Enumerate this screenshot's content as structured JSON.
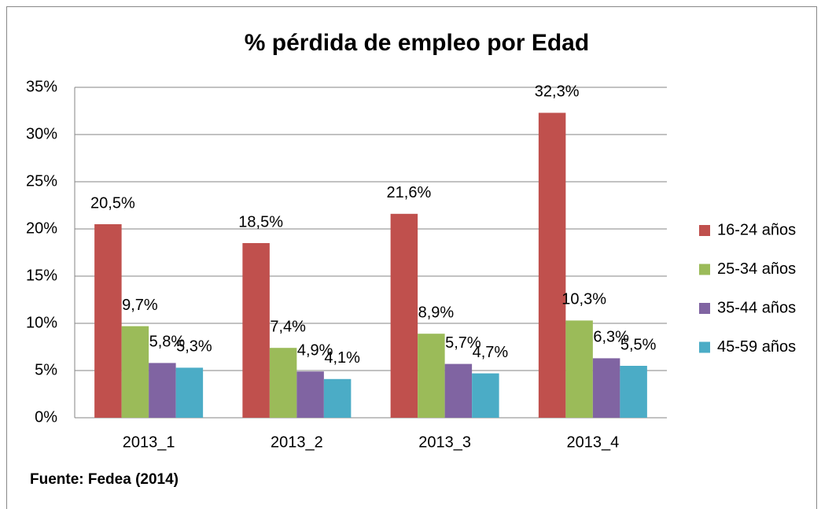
{
  "chart_data": {
    "type": "bar",
    "title": "% pérdida de empleo por Edad",
    "categories": [
      "2013_1",
      "2013_2",
      "2013_3",
      "2013_4"
    ],
    "series": [
      {
        "name": "16-24 años",
        "color": "#c0504d",
        "values": [
          20.5,
          18.5,
          21.6,
          32.3
        ],
        "value_labels": [
          "20,5%",
          "18,5%",
          "21,6%",
          "32,3%"
        ]
      },
      {
        "name": "25-34 años",
        "color": "#9bbb59",
        "values": [
          9.7,
          7.4,
          8.9,
          10.3
        ],
        "value_labels": [
          "9,7%",
          "7,4%",
          "8,9%",
          "10,3%"
        ]
      },
      {
        "name": "35-44 años",
        "color": "#8064a2",
        "values": [
          5.8,
          4.9,
          5.7,
          6.3
        ],
        "value_labels": [
          "5,8%",
          "4,9%",
          "5,7%",
          "6,3%"
        ]
      },
      {
        "name": "45-59 años",
        "color": "#4bacc6",
        "values": [
          5.3,
          4.1,
          4.7,
          5.5
        ],
        "value_labels": [
          "5,3%",
          "4,1%",
          "4,7%",
          "5,5%"
        ]
      }
    ],
    "ylim": [
      0,
      35
    ],
    "yticks": [
      {
        "value": 0,
        "label": "0%"
      },
      {
        "value": 5,
        "label": "5%"
      },
      {
        "value": 10,
        "label": "10%"
      },
      {
        "value": 15,
        "label": "15%"
      },
      {
        "value": 20,
        "label": "20%"
      },
      {
        "value": 25,
        "label": "25%"
      },
      {
        "value": 30,
        "label": "30%"
      },
      {
        "value": 35,
        "label": "35%"
      }
    ],
    "grid": true,
    "legend": "right",
    "source": "Fuente: Fedea (2014)"
  }
}
